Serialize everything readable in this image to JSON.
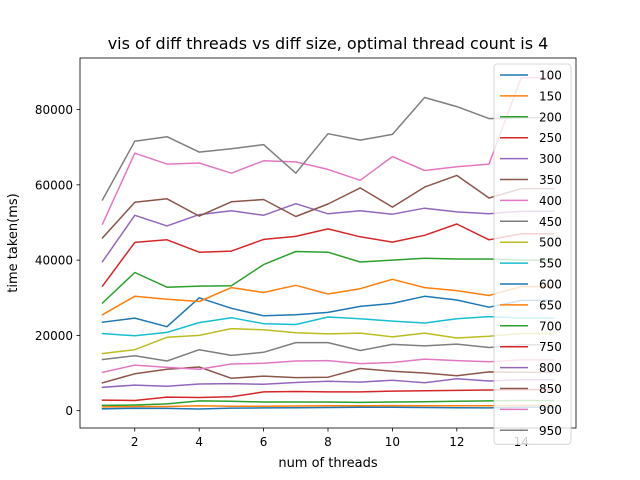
{
  "chart_data": {
    "type": "line",
    "title": "vis of diff threads vs diff size, optimal thread count is 4",
    "xlabel": "num of threads",
    "ylabel": "time taken(ms)",
    "xlim": [
      0.3,
      15.7
    ],
    "ylim": [
      -4600,
      93700
    ],
    "xticks": [
      2,
      4,
      6,
      8,
      10,
      12,
      14
    ],
    "yticks": [
      0,
      20000,
      40000,
      60000,
      80000
    ],
    "grid": false,
    "legend_position": "upper right",
    "x": [
      1,
      2,
      3,
      4,
      5,
      6,
      7,
      8,
      9,
      10,
      11,
      12,
      13,
      14,
      15
    ],
    "series": [
      {
        "name": "100",
        "color": "#1f77b4",
        "values": [
          500,
          650,
          600,
          450,
          700,
          750,
          800,
          850,
          900,
          900,
          850,
          800,
          750,
          900,
          900
        ]
      },
      {
        "name": "150",
        "color": "#ff7f0e",
        "values": [
          1000,
          1100,
          1100,
          1300,
          1200,
          1200,
          1250,
          1300,
          1300,
          1350,
          1300,
          1300,
          1300,
          1400,
          1400
        ]
      },
      {
        "name": "200",
        "color": "#2ca02c",
        "values": [
          1400,
          1500,
          1800,
          2600,
          2500,
          2300,
          2300,
          2300,
          2200,
          2300,
          2400,
          2500,
          2600,
          2700,
          2700
        ]
      },
      {
        "name": "250",
        "color": "#d62728",
        "values": [
          2800,
          2700,
          3600,
          3500,
          3700,
          5000,
          5100,
          5000,
          5000,
          5200,
          5300,
          5400,
          5500,
          5600,
          5600
        ]
      },
      {
        "name": "300",
        "color": "#9467bd",
        "values": [
          6200,
          6800,
          6500,
          7100,
          7200,
          7000,
          7500,
          7800,
          7600,
          8100,
          7400,
          8500,
          7900,
          8200,
          8200
        ]
      },
      {
        "name": "350",
        "color": "#8c564b",
        "values": [
          7400,
          9800,
          11000,
          11600,
          8600,
          9200,
          8800,
          8900,
          11200,
          10500,
          10000,
          9300,
          10300,
          10200,
          10200
        ]
      },
      {
        "name": "400",
        "color": "#e377c2",
        "values": [
          10200,
          12100,
          11500,
          11000,
          12400,
          12600,
          13200,
          13300,
          12500,
          12800,
          13700,
          13300,
          13000,
          13500,
          13500
        ]
      },
      {
        "name": "450",
        "color": "#7f7f7f",
        "values": [
          13600,
          14600,
          13200,
          16200,
          14700,
          15500,
          18100,
          18100,
          16000,
          17600,
          17200,
          17700,
          16800,
          17500,
          17500
        ]
      },
      {
        "name": "500",
        "color": "#bcbd22",
        "values": [
          15200,
          16200,
          19500,
          20000,
          21800,
          21500,
          20700,
          20400,
          20600,
          19600,
          20600,
          19300,
          19800,
          20500,
          20500
        ]
      },
      {
        "name": "550",
        "color": "#17becf",
        "values": [
          20500,
          19900,
          20800,
          23400,
          24700,
          23100,
          22900,
          24900,
          24400,
          23800,
          23300,
          24400,
          25000,
          24600,
          24600
        ]
      },
      {
        "name": "600",
        "color": "#1f77b4",
        "values": [
          23500,
          24600,
          22300,
          30000,
          27200,
          25200,
          25500,
          26100,
          27700,
          28500,
          30400,
          29400,
          27500,
          29300,
          29300
        ]
      },
      {
        "name": "650",
        "color": "#ff7f0e",
        "values": [
          25500,
          30400,
          29600,
          29000,
          32700,
          31400,
          33300,
          31000,
          32400,
          34900,
          32700,
          31900,
          30600,
          33000,
          33000
        ]
      },
      {
        "name": "700",
        "color": "#2ca02c",
        "values": [
          28600,
          36700,
          32800,
          33100,
          33200,
          38800,
          42300,
          42100,
          39500,
          40000,
          40500,
          40300,
          40300,
          40000,
          40000
        ]
      },
      {
        "name": "750",
        "color": "#d62728",
        "values": [
          33100,
          44700,
          45400,
          42100,
          42400,
          45500,
          46300,
          48300,
          46200,
          44800,
          46600,
          49600,
          45400,
          47000,
          47000
        ]
      },
      {
        "name": "800",
        "color": "#9467bd",
        "values": [
          39600,
          51900,
          49100,
          52100,
          53100,
          51900,
          55000,
          52300,
          53100,
          52200,
          53800,
          52800,
          52300,
          53000,
          53000
        ]
      },
      {
        "name": "850",
        "color": "#8c564b",
        "values": [
          45900,
          55400,
          56300,
          51700,
          55500,
          56100,
          51600,
          54900,
          59200,
          54100,
          59400,
          62500,
          56500,
          59000,
          59000
        ]
      },
      {
        "name": "900",
        "color": "#e377c2",
        "values": [
          49600,
          68400,
          65500,
          65800,
          63100,
          66400,
          66100,
          64100,
          61200,
          67500,
          63800,
          64800,
          65500,
          88500,
          88500
        ]
      },
      {
        "name": "950",
        "color": "#7f7f7f",
        "values": [
          56000,
          71600,
          72800,
          68700,
          69600,
          70700,
          63100,
          73600,
          71900,
          73400,
          83200,
          80800,
          77600,
          77800,
          77800
        ]
      }
    ]
  }
}
